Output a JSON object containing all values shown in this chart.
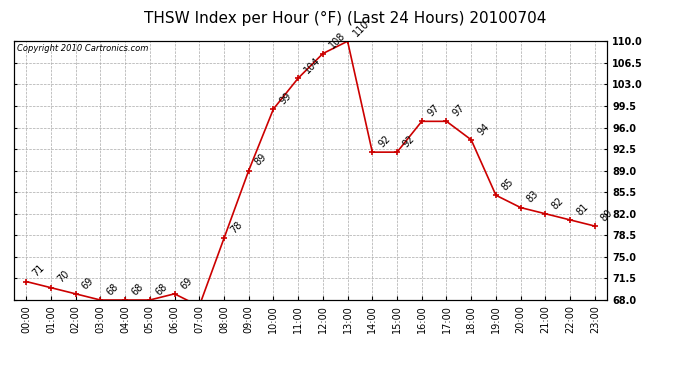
{
  "title": "THSW Index per Hour (°F) (Last 24 Hours) 20100704",
  "copyright": "Copyright 2010 Cartronics.com",
  "hours": [
    "00:00",
    "01:00",
    "02:00",
    "03:00",
    "04:00",
    "05:00",
    "06:00",
    "07:00",
    "08:00",
    "09:00",
    "10:00",
    "11:00",
    "12:00",
    "13:00",
    "14:00",
    "15:00",
    "16:00",
    "17:00",
    "18:00",
    "19:00",
    "20:00",
    "21:00",
    "22:00",
    "23:00"
  ],
  "values": [
    71,
    70,
    69,
    68,
    68,
    68,
    69,
    67,
    78,
    89,
    99,
    104,
    108,
    110,
    92,
    92,
    97,
    97,
    94,
    85,
    83,
    82,
    81,
    80
  ],
  "ylim": [
    68.0,
    110.0
  ],
  "yticks": [
    68.0,
    71.5,
    75.0,
    78.5,
    82.0,
    85.5,
    89.0,
    92.5,
    96.0,
    99.5,
    103.0,
    106.5,
    110.0
  ],
  "line_color": "#cc0000",
  "marker_color": "#cc0000",
  "bg_color": "#ffffff",
  "grid_color": "#aaaaaa",
  "title_fontsize": 11,
  "label_fontsize": 7,
  "annotation_fontsize": 7,
  "copyright_fontsize": 6
}
